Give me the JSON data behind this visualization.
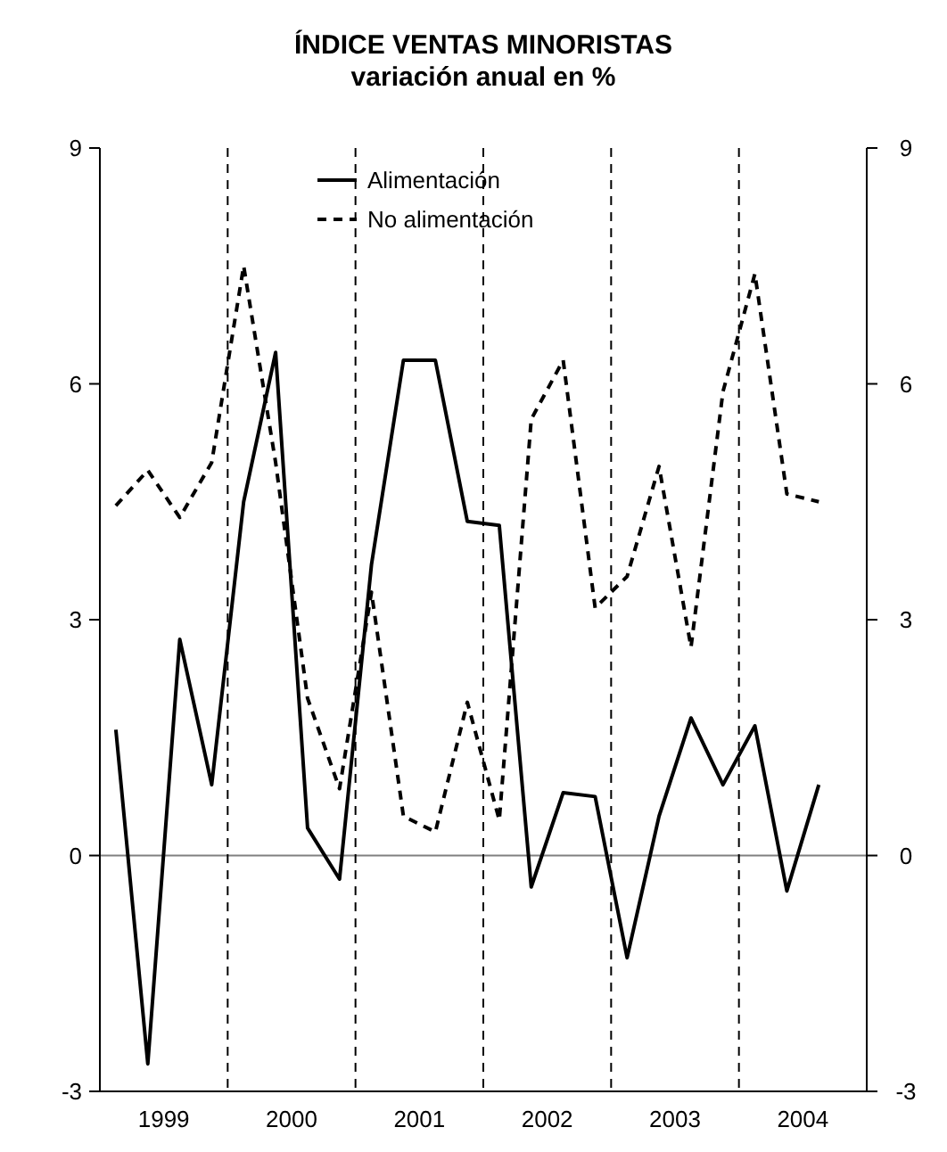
{
  "chart_data": {
    "type": "line",
    "title": "ÍNDICE VENTAS MINORISTAS",
    "subtitle": "variación anual en %",
    "x": [
      1999.125,
      1999.375,
      1999.625,
      1999.875,
      2000.125,
      2000.375,
      2000.625,
      2000.875,
      2001.125,
      2001.375,
      2001.625,
      2001.875,
      2002.125,
      2002.375,
      2002.625,
      2002.875,
      2003.125,
      2003.375,
      2003.625,
      2003.875,
      2004.125,
      2004.375,
      2004.625
    ],
    "series": [
      {
        "name": "Alimentación",
        "color": "#000000",
        "line_style": "solid",
        "values": [
          1.6,
          -2.65,
          2.75,
          0.9,
          4.5,
          6.4,
          0.35,
          -0.3,
          3.7,
          6.3,
          6.3,
          4.25,
          4.2,
          -0.4,
          0.8,
          0.75,
          -1.3,
          0.5,
          1.75,
          0.9,
          1.65,
          -0.45,
          0.9
        ]
      },
      {
        "name": "No alimentación",
        "color": "#000000",
        "line_style": "dashed",
        "values": [
          4.45,
          4.9,
          4.3,
          5.0,
          7.5,
          5.0,
          2.0,
          0.85,
          3.35,
          0.5,
          0.3,
          1.95,
          0.45,
          5.55,
          6.3,
          3.15,
          3.55,
          4.95,
          2.65,
          5.9,
          7.4,
          4.6,
          4.5
        ]
      }
    ],
    "xlim": [
      1999,
      2005
    ],
    "xticks": [
      {
        "value": 1999.5,
        "label": "1999"
      },
      {
        "value": 2000.5,
        "label": "2000"
      },
      {
        "value": 2001.5,
        "label": "2001"
      },
      {
        "value": 2002.5,
        "label": "2002"
      },
      {
        "value": 2003.5,
        "label": "2003"
      },
      {
        "value": 2004.5,
        "label": "2004"
      }
    ],
    "ylim": [
      -3,
      9
    ],
    "yticks": [
      -3,
      0,
      3,
      6,
      9
    ],
    "y2lim": [
      -3,
      9
    ],
    "y2ticks": [
      -3,
      0,
      3,
      6,
      9
    ],
    "ref_lines": [
      {
        "axis": "y",
        "value": 0,
        "color": "#808080",
        "line_style": "solid"
      },
      {
        "axis": "x",
        "value": 2000,
        "color": "#000000",
        "line_style": "dashed"
      },
      {
        "axis": "x",
        "value": 2001,
        "color": "#000000",
        "line_style": "dashed"
      },
      {
        "axis": "x",
        "value": 2002,
        "color": "#000000",
        "line_style": "dashed"
      },
      {
        "axis": "x",
        "value": 2003,
        "color": "#000000",
        "line_style": "dashed"
      },
      {
        "axis": "x",
        "value": 2004,
        "color": "#000000",
        "line_style": "dashed"
      }
    ],
    "legend": "top",
    "grid": false,
    "marker": "none"
  }
}
